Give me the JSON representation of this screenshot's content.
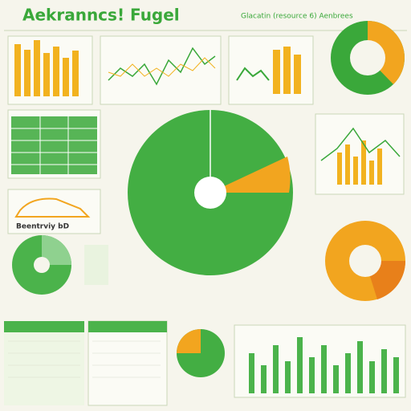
{
  "header": {
    "title": "Aekranncs! Fugel",
    "subtitle": "Glacatin (resource 6) Aenbrees"
  },
  "panels": {
    "car_label": "Beentrviy bD"
  }
}
